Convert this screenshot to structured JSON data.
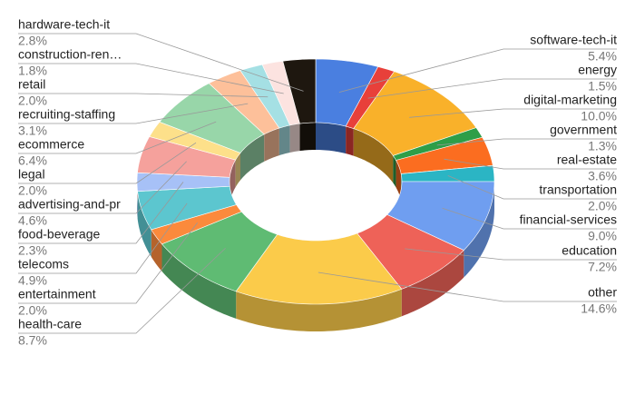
{
  "chart_data": {
    "type": "pie",
    "donut": true,
    "categories": [
      "software-tech-it",
      "energy",
      "digital-marketing",
      "government",
      "real-estate",
      "transportation",
      "financial-services",
      "education",
      "other",
      "health-care",
      "entertainment",
      "telecoms",
      "food-beverage",
      "advertising-and-pr",
      "legal",
      "ecommerce",
      "recruiting-staffing",
      "retail",
      "construction-ren…",
      "hardware-tech-it"
    ],
    "values": [
      5.4,
      1.5,
      10.0,
      1.3,
      3.6,
      2.0,
      9.0,
      7.2,
      14.6,
      8.7,
      2.0,
      4.9,
      2.3,
      4.6,
      2.0,
      6.4,
      3.1,
      2.0,
      1.8,
      2.8
    ],
    "value_labels": [
      "5.4%",
      "1.5%",
      "10.0%",
      "1.3%",
      "3.6%",
      "2.0%",
      "9.0%",
      "7.2%",
      "14.6%",
      "8.7%",
      "2.0%",
      "4.9%",
      "2.3%",
      "4.6%",
      "2.0%",
      "6.4%",
      "3.1%",
      "2.0%",
      "1.8%",
      "2.8%"
    ],
    "colors": [
      "#4a7fe0",
      "#e8403a",
      "#f9b12a",
      "#2e9e48",
      "#fb6d20",
      "#2bb5c4",
      "#6f9ef0",
      "#ee6258",
      "#fbcb4a",
      "#5fbb73",
      "#fb8a3c",
      "#5cc6cf",
      "#a7c1f7",
      "#f5a19c",
      "#fde08a",
      "#98d6a9",
      "#fdc09a",
      "#a5e0e4",
      "#fce3e0",
      "#1e170f"
    ]
  }
}
